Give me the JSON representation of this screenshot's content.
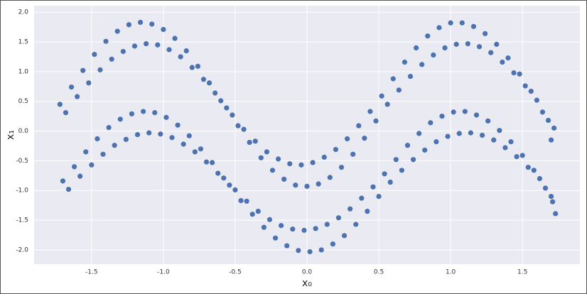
{
  "chart_data": {
    "type": "scatter",
    "xlabel": "x₀",
    "ylabel": "x₁",
    "color": "#4c72b0",
    "grid": true,
    "xlim": [
      -1.9,
      1.9
    ],
    "ylim": [
      -2.24,
      2.11
    ],
    "xticks": [
      -1.5,
      {
        "value": -1,
        "label": "-1.0"
      },
      -0.5,
      {
        "value": 0,
        "label": "0.0"
      },
      0.5,
      {
        "value": 1,
        "label": "1.0"
      },
      1.5
    ],
    "yticks": [
      {
        "value": 2,
        "label": "2.0"
      },
      1.5,
      {
        "value": 1,
        "label": "1.0"
      },
      0.5,
      {
        "value": 0,
        "label": "0.0"
      },
      -0.5,
      {
        "value": -1,
        "label": "-1.0"
      },
      -1.5,
      {
        "value": -2,
        "label": "-2.0"
      }
    ],
    "x": [
      -1.72,
      -1.68,
      -1.7,
      -1.66,
      -1.64,
      -1.6,
      -1.62,
      -1.58,
      -1.56,
      -1.52,
      -1.54,
      -1.5,
      -1.48,
      -1.44,
      -1.46,
      -1.42,
      -1.4,
      -1.36,
      -1.38,
      -1.34,
      -1.32,
      -1.28,
      -1.3,
      -1.26,
      -1.24,
      -1.2,
      -1.22,
      -1.18,
      -1.16,
      -1.12,
      -1.14,
      -1.1,
      -1.08,
      -1.04,
      -1.06,
      -1.02,
      -1.0,
      -0.96,
      -0.98,
      -0.94,
      -0.92,
      -0.88,
      -0.9,
      -0.86,
      -0.84,
      -0.8,
      -0.82,
      -0.78,
      -0.76,
      -0.72,
      -0.74,
      -0.7,
      -0.68,
      -0.64,
      -0.66,
      -0.62,
      -0.6,
      -0.56,
      -0.58,
      -0.54,
      -0.52,
      -0.48,
      -0.5,
      -0.46,
      -0.44,
      -0.4,
      -0.42,
      -0.38,
      -0.36,
      -0.32,
      -0.34,
      -0.3,
      -0.28,
      -0.24,
      -0.26,
      -0.22,
      -0.2,
      -0.16,
      -0.18,
      -0.14,
      -0.12,
      -0.08,
      -0.1,
      -0.06,
      -0.04,
      0,
      -0.02,
      0.02,
      0.04,
      0.08,
      0.06,
      0.1,
      0.12,
      0.16,
      0.14,
      0.18,
      0.2,
      0.24,
      0.22,
      0.26,
      0.28,
      0.32,
      0.3,
      0.34,
      0.36,
      0.4,
      0.38,
      0.42,
      0.44,
      0.48,
      0.46,
      0.5,
      0.52,
      0.56,
      0.54,
      0.58,
      0.6,
      0.64,
      0.62,
      0.66,
      0.68,
      0.72,
      0.7,
      0.74,
      0.76,
      0.8,
      0.78,
      0.82,
      0.84,
      0.88,
      0.86,
      0.9,
      0.92,
      0.96,
      0.94,
      0.98,
      1.0,
      1.04,
      1.02,
      1.06,
      1.08,
      1.12,
      1.1,
      1.14,
      1.16,
      1.2,
      1.18,
      1.22,
      1.24,
      1.28,
      1.26,
      1.3,
      1.32,
      1.36,
      1.34,
      1.38,
      1.4,
      1.44,
      1.42,
      1.46,
      1.48,
      1.52,
      1.5,
      1.54,
      1.56,
      1.6,
      1.58,
      1.62,
      1.64,
      1.68,
      1.66,
      1.7,
      1.72,
      1.7,
      1.71,
      1.73
    ],
    "y": [
      0.45,
      0.31,
      -0.84,
      -0.98,
      0.74,
      0.58,
      -0.6,
      -0.76,
      1.02,
      0.81,
      -0.35,
      -0.57,
      1.29,
      1.03,
      -0.13,
      -0.39,
      1.51,
      1.21,
      0.06,
      -0.24,
      1.68,
      1.34,
      0.2,
      -0.14,
      1.79,
      1.43,
      0.29,
      -0.06,
      1.83,
      1.47,
      0.33,
      -0.03,
      1.8,
      1.45,
      0.31,
      -0.05,
      1.71,
      1.37,
      0.23,
      -0.11,
      1.56,
      1.25,
      0.1,
      -0.22,
      1.35,
      1.07,
      -0.08,
      -0.35,
      1.09,
      0.87,
      -0.3,
      -0.52,
      0.81,
      0.64,
      -0.53,
      -0.71,
      0.51,
      0.39,
      -0.79,
      -0.91,
      0.27,
      0.09,
      -0.99,
      -1.17,
      0.03,
      -0.19,
      -1.18,
      -1.4,
      -0.17,
      -0.45,
      -1.35,
      -1.62,
      -0.35,
      -0.66,
      -1.49,
      -1.8,
      -0.47,
      -0.81,
      -1.59,
      -1.93,
      -0.55,
      -0.91,
      -1.65,
      -2.01,
      -0.57,
      -0.93,
      -1.67,
      -2.03,
      -0.53,
      -0.89,
      -1.64,
      -2.0,
      -0.44,
      -0.78,
      -1.57,
      -1.9,
      -0.31,
      -0.61,
      -1.46,
      -1.76,
      -0.13,
      -0.39,
      -1.31,
      -1.57,
      0.09,
      -0.12,
      -1.13,
      -1.35,
      0.33,
      0.17,
      -0.94,
      -1.1,
      0.59,
      0.45,
      -0.72,
      -0.86,
      0.88,
      0.69,
      -0.48,
      -0.66,
      1.16,
      0.92,
      -0.24,
      -0.48,
      1.4,
      1.12,
      -0.04,
      -0.32,
      1.6,
      1.28,
      0.14,
      -0.18,
      1.74,
      1.4,
      0.25,
      -0.09,
      1.82,
      1.46,
      0.32,
      -0.04,
      1.82,
      1.47,
      0.33,
      -0.03,
      1.76,
      1.42,
      0.27,
      -0.07,
      1.64,
      1.32,
      0.17,
      -0.15,
      1.46,
      1.16,
      0.01,
      -0.28,
      1.23,
      0.98,
      -0.18,
      -0.43,
      0.96,
      0.76,
      -0.41,
      -0.61,
      0.67,
      0.52,
      -0.66,
      -0.8,
      0.32,
      0.18,
      -0.96,
      -1.1,
      0.05,
      -0.15,
      -1.19,
      -1.39
    ]
  }
}
